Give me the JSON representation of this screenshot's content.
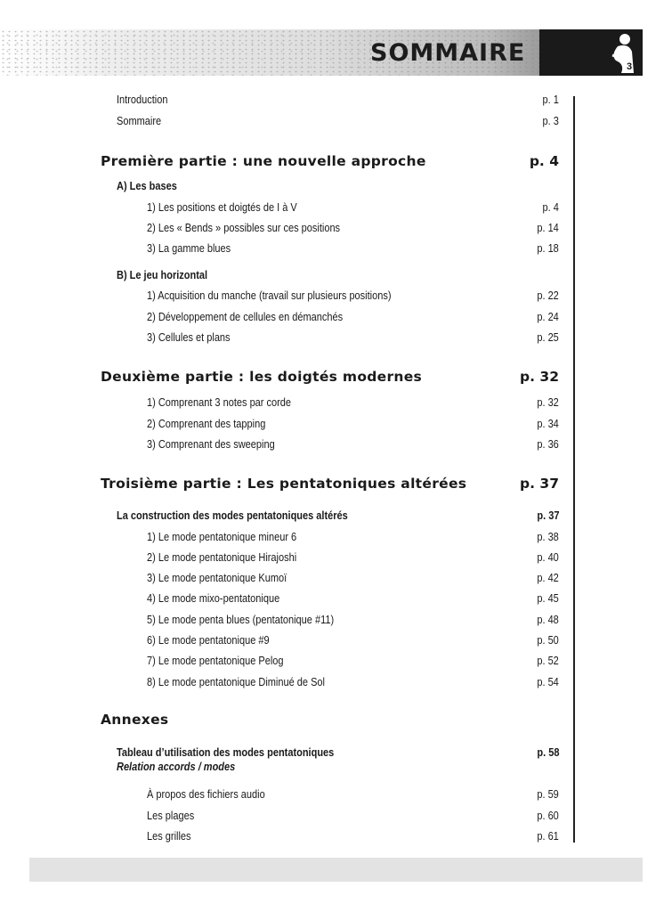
{
  "header": {
    "title": "SOMMAIRE",
    "page_number": "3"
  },
  "entries": [
    {
      "type": "l0",
      "text": "Introduction",
      "page": "p. 1"
    },
    {
      "type": "l0",
      "text": "Sommaire",
      "page": "p. 3"
    },
    {
      "type": "part",
      "text": "Première partie : une nouvelle approche",
      "page": "p. 4"
    },
    {
      "type": "sub",
      "text": "A) Les bases",
      "page": ""
    },
    {
      "type": "l2",
      "text": "1) Les positions et doigtés de I à V",
      "page": "p. 4"
    },
    {
      "type": "l2",
      "text": "2) Les « Bends » possibles sur ces positions",
      "page": "p. 14"
    },
    {
      "type": "l2",
      "text": "3) La gamme blues",
      "page": "p. 18"
    },
    {
      "type": "sub",
      "text": "B) Le jeu horizontal",
      "page": ""
    },
    {
      "type": "l2",
      "text": "1) Acquisition du manche (travail sur plusieurs positions)",
      "page": "p. 22"
    },
    {
      "type": "l2",
      "text": "2) Développement de cellules en démanchés",
      "page": "p. 24"
    },
    {
      "type": "l2",
      "text": "3) Cellules et plans",
      "page": "p. 25"
    },
    {
      "type": "part",
      "text": "Deuxième partie : les doigtés modernes",
      "page": "p. 32"
    },
    {
      "type": "l2",
      "text": "1) Comprenant 3 notes par corde",
      "page": "p. 32"
    },
    {
      "type": "l2",
      "text": "2) Comprenant des tapping",
      "page": "p. 34"
    },
    {
      "type": "l2",
      "text": "3) Comprenant des sweeping",
      "page": "p. 36"
    },
    {
      "type": "part",
      "text": "Troisième partie : Les pentatoniques altérées",
      "page": "p. 37"
    },
    {
      "type": "sub",
      "text": "La construction des modes pentatoniques altérés",
      "page": "p. 37"
    },
    {
      "type": "l2",
      "text": "1) Le mode pentatonique mineur 6",
      "page": "p. 38"
    },
    {
      "type": "l2",
      "text": "2) Le mode pentatonique Hirajoshi",
      "page": "p. 40"
    },
    {
      "type": "l2",
      "text": "3) Le mode pentatonique Kumoï",
      "page": "p. 42"
    },
    {
      "type": "l2",
      "text": "4) Le mode mixo-pentatonique",
      "page": "p. 45"
    },
    {
      "type": "l2",
      "text": "5) Le mode penta blues (pentatonique #11)",
      "page": "p. 48"
    },
    {
      "type": "l2",
      "text": "6) Le mode pentatonique #9",
      "page": "p. 50"
    },
    {
      "type": "l2",
      "text": "7) Le mode pentatonique Pelog",
      "page": "p. 52"
    },
    {
      "type": "l2",
      "text": "8) Le mode pentatonique Diminué de Sol",
      "page": "p. 54"
    },
    {
      "type": "part",
      "text": "Annexes",
      "page": ""
    },
    {
      "type": "sub",
      "text": "Tableau d’utilisation des modes pentatoniques",
      "page": "p. 58"
    },
    {
      "type": "it",
      "text": "Relation accords / modes",
      "page": ""
    },
    {
      "type": "l2",
      "text": "À propos des fichiers audio",
      "page": "p. 59"
    },
    {
      "type": "l2",
      "text": "Les plages",
      "page": "p. 60"
    },
    {
      "type": "l2",
      "text": "Les grilles",
      "page": "p. 61"
    }
  ]
}
